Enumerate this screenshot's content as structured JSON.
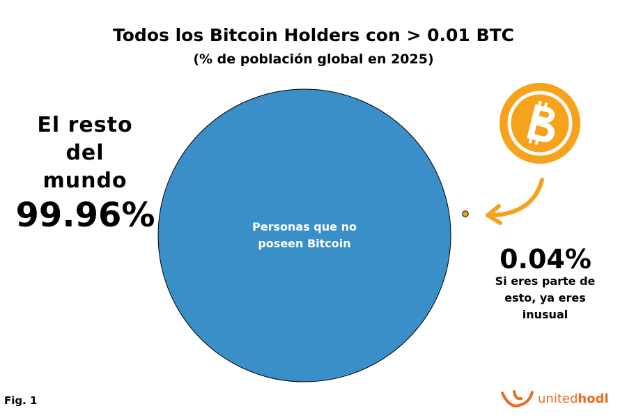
{
  "chart_data": {
    "type": "bubble",
    "title": "Todos los Bitcoin Holders con > 0.01 BTC",
    "subtitle": "(% de población global en 2025)",
    "categories": [
      "El resto del mundo",
      "Si eres parte de esto, ya eres inusual"
    ],
    "values": [
      99.96,
      0.04
    ],
    "value_labels": [
      "99.96%",
      "0.04%"
    ],
    "colors": [
      "#3a8fc8",
      "#f0a020"
    ],
    "annotations": [
      "Personas que no poseen Bitcoin"
    ]
  },
  "footer": {
    "figure": "Fig. 1",
    "brand": [
      "united",
      "hodl"
    ]
  }
}
